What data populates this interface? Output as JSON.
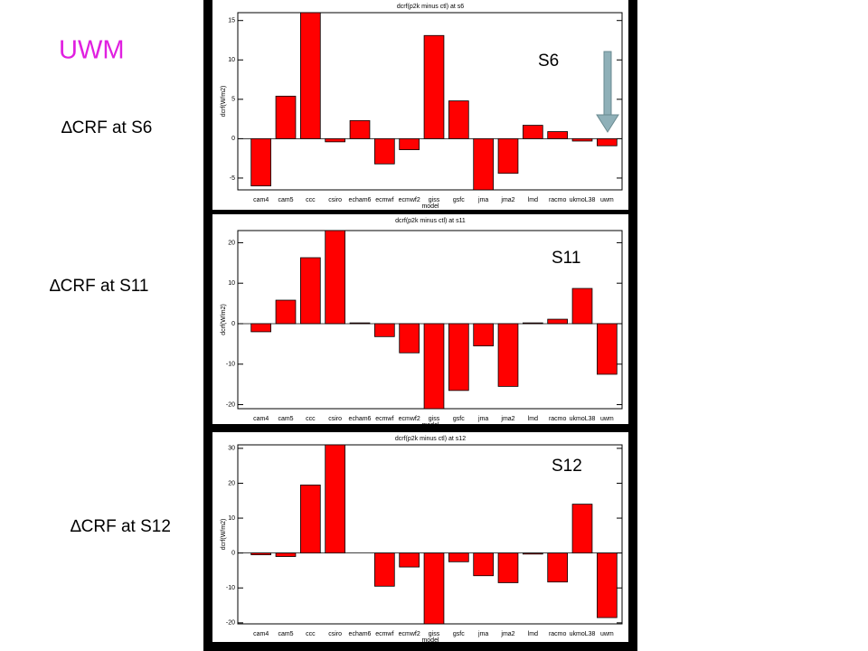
{
  "slide": {
    "title": "UWM"
  },
  "chart_data": [
    {
      "type": "bar",
      "title": "dcrf(p2k minus ctl) at s6",
      "label": "∆CRF at S6",
      "annotation": "S6",
      "x_label": "model",
      "y_label": "dcrf(W/m2)",
      "color": "#ff0000",
      "categories": [
        "cam4",
        "cam5",
        "ccc",
        "csiro",
        "echam6",
        "ecmwf",
        "ecmwf2",
        "giss",
        "gsfc",
        "jma",
        "jma2",
        "lmd",
        "racmo",
        "ukmoL38",
        "uwm"
      ],
      "values": [
        -6,
        5.4,
        16,
        -0.4,
        2.3,
        -3.2,
        -1.4,
        13.1,
        4.8,
        -6.5,
        -4.4,
        1.7,
        0.9,
        -0.3,
        -0.9
      ],
      "ylim": [
        -6.5,
        16
      ],
      "yticks": [
        -5,
        0,
        5,
        10,
        15
      ]
    },
    {
      "type": "bar",
      "title": "dcrf(p2k minus ctl) at s11",
      "label": "∆CRF at S11",
      "annotation": "S11",
      "x_label": "model",
      "y_label": "dcrf(W/m2)",
      "color": "#ff0000",
      "categories": [
        "cam4",
        "cam5",
        "ccc",
        "csiro",
        "echam6",
        "ecmwf",
        "ecmwf2",
        "giss",
        "gsfc",
        "jma",
        "jma2",
        "lmd",
        "racmo",
        "ukmoL38",
        "uwm"
      ],
      "values": [
        -2,
        5.8,
        16.3,
        23,
        0.2,
        -3.2,
        -7.2,
        -21,
        -16.5,
        -5.5,
        -15.5,
        0.2,
        1.1,
        8.7,
        -12.5
      ],
      "ylim": [
        -21,
        23
      ],
      "yticks": [
        -20,
        -10,
        0,
        10,
        20
      ]
    },
    {
      "type": "bar",
      "title": "dcrf(p2k minus ctl) at s12",
      "label": "∆CRF at S12",
      "annotation": "S12",
      "x_label": "model",
      "y_label": "dcrf(W/m2)",
      "color": "#ff0000",
      "categories": [
        "cam4",
        "cam5",
        "ccc",
        "csiro",
        "echam6",
        "ecmwf",
        "ecmwf2",
        "giss",
        "gsfc",
        "jma",
        "jma2",
        "lmd",
        "racmo",
        "ukmoL38",
        "uwm"
      ],
      "values": [
        -0.5,
        -1,
        19.5,
        31,
        0,
        -9.5,
        -4,
        -20.3,
        -2.5,
        -6.5,
        -8.5,
        -0.3,
        -8.3,
        14,
        -18.5
      ],
      "ylim": [
        -20.3,
        31
      ],
      "yticks": [
        -20,
        -10,
        0,
        10,
        20,
        30
      ]
    }
  ]
}
